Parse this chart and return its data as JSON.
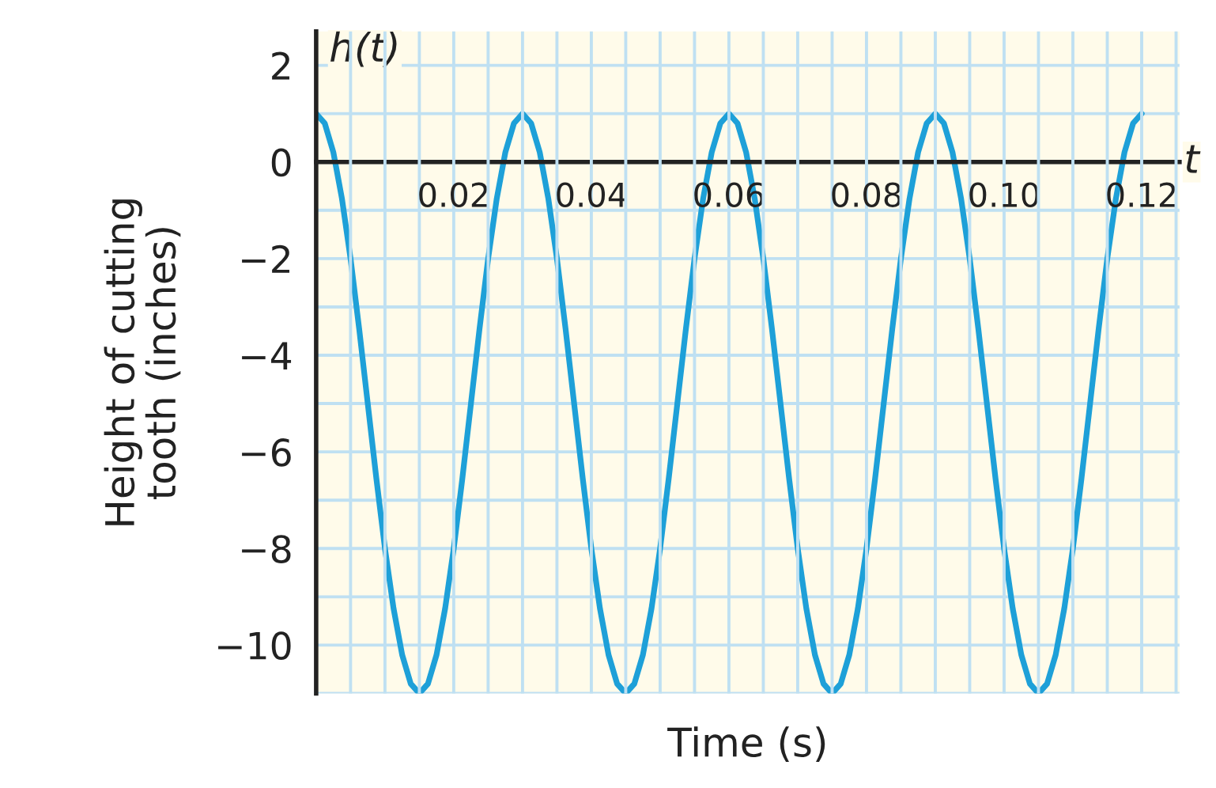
{
  "chart_data": {
    "type": "line",
    "xlabel": "Time (s)",
    "ylabel": "Height of cutting\ntooth (inches)",
    "annotations": [
      "h(t)",
      "t"
    ],
    "x": [
      0,
      0.00125,
      0.0025,
      0.00375,
      0.005,
      0.00625,
      0.0075,
      0.00875,
      0.01,
      0.01125,
      0.0125,
      0.01375,
      0.015,
      0.01625,
      0.0175,
      0.01875,
      0.02,
      0.02125,
      0.0225,
      0.02375,
      0.025,
      0.02625,
      0.0275,
      0.02875,
      0.03,
      0.03125,
      0.0325,
      0.03375,
      0.035,
      0.03625,
      0.0375,
      0.03875,
      0.04,
      0.04125,
      0.0425,
      0.04375,
      0.045,
      0.04625,
      0.0475,
      0.04875,
      0.05,
      0.05125,
      0.0525,
      0.05375,
      0.055,
      0.05625,
      0.0575,
      0.05875,
      0.06,
      0.06125,
      0.0625,
      0.06375,
      0.065,
      0.06625,
      0.0675,
      0.06875,
      0.07,
      0.07125,
      0.0725,
      0.07375,
      0.075,
      0.07625,
      0.0775,
      0.07875,
      0.08,
      0.08125,
      0.0825,
      0.08375,
      0.085,
      0.08625,
      0.0875,
      0.08875,
      0.09,
      0.09125,
      0.0925,
      0.09375,
      0.095,
      0.09625,
      0.0975,
      0.09875,
      0.1,
      0.10125,
      0.1025,
      0.10375,
      0.105,
      0.10625,
      0.1075,
      0.10875,
      0.11,
      0.11125,
      0.1125,
      0.11375,
      0.115,
      0.11625,
      0.1175,
      0.11875,
      0.12
    ],
    "series": [
      {
        "color": "#1ea0d8",
        "values": [
          1,
          0.8,
          0.2,
          -0.76,
          -2,
          -3.45,
          -5,
          -6.55,
          -8,
          -9.24,
          -10.2,
          -10.8,
          -11,
          -10.8,
          -10.2,
          -9.24,
          -8,
          -6.55,
          -5,
          -3.45,
          -2,
          -0.76,
          0.2,
          0.8,
          1,
          0.8,
          0.2,
          -0.76,
          -2,
          -3.45,
          -5,
          -6.55,
          -8,
          -9.24,
          -10.2,
          -10.8,
          -11,
          -10.8,
          -10.2,
          -9.24,
          -8,
          -6.55,
          -5,
          -3.45,
          -2,
          -0.76,
          0.2,
          0.8,
          1,
          0.8,
          0.2,
          -0.76,
          -2,
          -3.45,
          -5,
          -6.55,
          -8,
          -9.24,
          -10.2,
          -10.8,
          -11,
          -10.8,
          -10.2,
          -9.24,
          -8,
          -6.55,
          -5,
          -3.45,
          -2,
          -0.76,
          0.2,
          0.8,
          1,
          0.8,
          0.2,
          -0.76,
          -2,
          -3.45,
          -5,
          -6.55,
          -8,
          -9.24,
          -10.2,
          -10.8,
          -11,
          -10.8,
          -10.2,
          -9.24,
          -8,
          -6.55,
          -5,
          -3.45,
          -2,
          -0.76,
          0.2,
          0.8,
          1
        ]
      }
    ],
    "xlim": [
      0,
      0.1255
    ],
    "ylim": [
      -11,
      2.7
    ],
    "xticks": [
      {
        "value": 0.005,
        "label": null
      },
      {
        "value": 0.01,
        "label": null
      },
      {
        "value": 0.015,
        "label": null
      },
      0.02,
      {
        "value": 0.025,
        "label": null
      },
      {
        "value": 0.03,
        "label": null
      },
      {
        "value": 0.035,
        "label": null
      },
      0.04,
      {
        "value": 0.045,
        "label": null
      },
      {
        "value": 0.05,
        "label": null
      },
      {
        "value": 0.055,
        "label": null
      },
      0.06,
      {
        "value": 0.065,
        "label": null
      },
      {
        "value": 0.07,
        "label": null
      },
      {
        "value": 0.075,
        "label": null
      },
      0.08,
      {
        "value": 0.085,
        "label": null
      },
      {
        "value": 0.09,
        "label": null
      },
      {
        "value": 0.095,
        "label": null
      },
      {
        "value": 0.1,
        "label": "0.10"
      },
      {
        "value": 0.105,
        "label": null
      },
      {
        "value": 0.11,
        "label": null
      },
      {
        "value": 0.115,
        "label": null
      },
      0.12,
      {
        "value": 0.125,
        "label": null
      }
    ],
    "yticks": [
      {
        "value": -11,
        "label": null
      },
      -10,
      {
        "value": -9,
        "label": null
      },
      -8,
      {
        "value": -7,
        "label": null
      },
      -6,
      {
        "value": -5,
        "label": null
      },
      -4,
      {
        "value": -3,
        "label": null
      },
      -2,
      {
        "value": -1,
        "label": null
      },
      0,
      {
        "value": 1,
        "label": null
      },
      2
    ],
    "grid": true,
    "line_style": "solid",
    "marker": "none"
  }
}
